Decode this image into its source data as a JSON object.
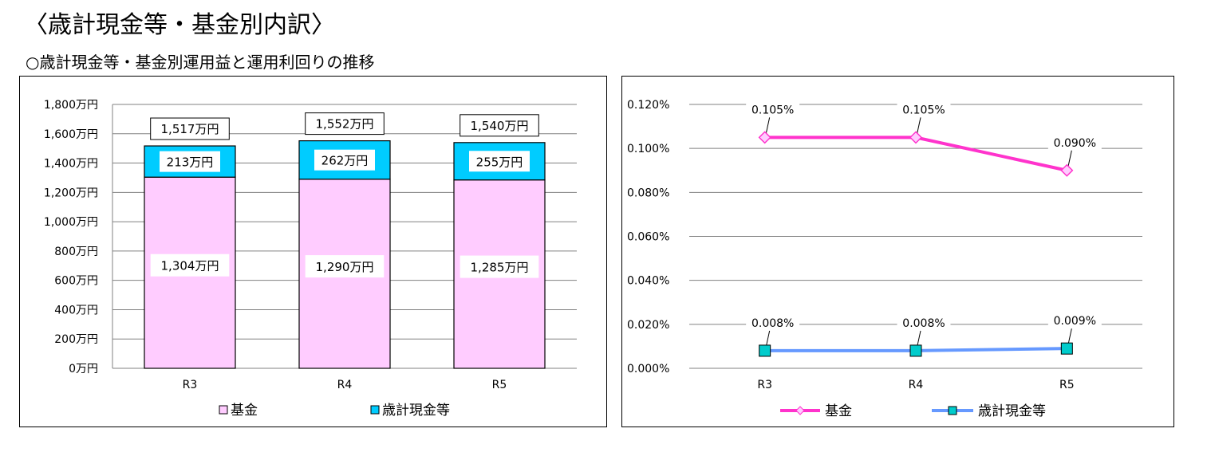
{
  "page": {
    "title": "〈歳計現金等・基金別内訳〉",
    "subtitle": "○歳計現金等・基金別運用益と運用利回りの推移"
  },
  "chart_data": [
    {
      "type": "bar",
      "stacked": true,
      "categories": [
        "R3",
        "R4",
        "R5"
      ],
      "series": [
        {
          "name": "基金",
          "values": [
            1304,
            1290,
            1285
          ],
          "labels": [
            "1,304万円",
            "1,290万円",
            "1,285万円"
          ],
          "color": "#FFCCFF"
        },
        {
          "name": "歳計現金等",
          "values": [
            213,
            262,
            255
          ],
          "labels": [
            "213万円",
            "262万円",
            "255万円"
          ],
          "color": "#00CCFF"
        }
      ],
      "totals": {
        "values": [
          1517,
          1552,
          1540
        ],
        "labels": [
          "1,517万円",
          "1,552万円",
          "1,540万円"
        ]
      },
      "ylim": [
        0,
        1800
      ],
      "yticks": [
        {
          "value": 0,
          "label": "0万円"
        },
        {
          "value": 200,
          "label": "200万円"
        },
        {
          "value": 400,
          "label": "400万円"
        },
        {
          "value": 600,
          "label": "600万円"
        },
        {
          "value": 800,
          "label": "800万円"
        },
        {
          "value": 1000,
          "label": "1,000万円"
        },
        {
          "value": 1200,
          "label": "1,200万円"
        },
        {
          "value": 1400,
          "label": "1,400万円"
        },
        {
          "value": 1600,
          "label": "1,600万円"
        },
        {
          "value": 1800,
          "label": "1,800万円"
        }
      ],
      "grid": true,
      "legend_position": "bottom"
    },
    {
      "type": "line",
      "categories": [
        "R3",
        "R4",
        "R5"
      ],
      "series": [
        {
          "name": "基金",
          "values": [
            0.105,
            0.105,
            0.09
          ],
          "labels": [
            "0.105%",
            "0.105%",
            "0.090%"
          ],
          "color": "#FF33CC",
          "marker": "diamond",
          "marker_color": "#FFCCFF"
        },
        {
          "name": "歳計現金等",
          "values": [
            0.008,
            0.008,
            0.009
          ],
          "labels": [
            "0.008%",
            "0.008%",
            "0.009%"
          ],
          "color": "#6699FF",
          "marker": "square",
          "marker_color": "#00CCCC"
        }
      ],
      "ylim": [
        0,
        0.12
      ],
      "yticks": [
        {
          "value": 0,
          "label": "0.000%"
        },
        {
          "value": 0.02,
          "label": "0.020%"
        },
        {
          "value": 0.04,
          "label": "0.040%"
        },
        {
          "value": 0.06,
          "label": "0.060%"
        },
        {
          "value": 0.08,
          "label": "0.080%"
        },
        {
          "value": 0.1,
          "label": "0.100%"
        },
        {
          "value": 0.12,
          "label": "0.120%"
        }
      ],
      "grid": true,
      "legend_position": "bottom"
    }
  ]
}
